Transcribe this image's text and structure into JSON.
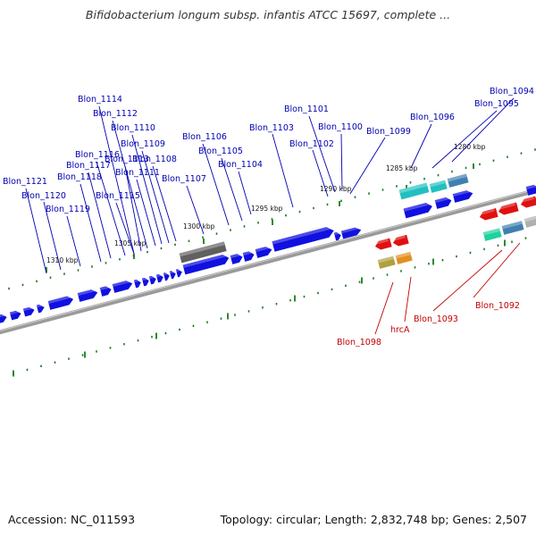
{
  "title": "Bifidobacterium longum subsp. infantis ATCC 15697, complete ...",
  "accession": "Accession: NC_011593",
  "summary": "Topology: circular; Length: 2,832,748 bp; Genes: 2,507",
  "colors": {
    "forward_gene": "#1010e0",
    "reverse_gene": "#e01010",
    "label_forward": "#0000b0",
    "label_reverse": "#c00000",
    "backbone": "#7a7a7a",
    "tick": "#1a7a1a"
  },
  "ticks": [
    {
      "label": "1280 kbp"
    },
    {
      "label": "1285 kbp"
    },
    {
      "label": "1290 kbp"
    },
    {
      "label": "1295 kbp"
    },
    {
      "label": "1300 kbp"
    },
    {
      "label": "1305 kbp"
    },
    {
      "label": "1310 kbp"
    }
  ],
  "forward_labels": [
    {
      "name": "Blon_1094"
    },
    {
      "name": "Blon_1095"
    },
    {
      "name": "Blon_1096"
    },
    {
      "name": "Blon_1099"
    },
    {
      "name": "Blon_1100"
    },
    {
      "name": "Blon_1101"
    },
    {
      "name": "Blon_1102"
    },
    {
      "name": "Blon_1103"
    },
    {
      "name": "Blon_1104"
    },
    {
      "name": "Blon_1105"
    },
    {
      "name": "Blon_1106"
    },
    {
      "name": "Blon_1107"
    },
    {
      "name": "Blon_1108"
    },
    {
      "name": "Blon_1109"
    },
    {
      "name": "Blon_1110"
    },
    {
      "name": "Blon_1111"
    },
    {
      "name": "Blon_1112"
    },
    {
      "name": "Blon_1113"
    },
    {
      "name": "Blon_1114"
    },
    {
      "name": "Blon_1115"
    },
    {
      "name": "Blon_1116"
    },
    {
      "name": "Blon_1117"
    },
    {
      "name": "Blon_1118"
    },
    {
      "name": "Blon_1119"
    },
    {
      "name": "Blon_1120"
    },
    {
      "name": "Blon_1121"
    }
  ],
  "reverse_labels": [
    {
      "name": "Blon_1092"
    },
    {
      "name": "Blon_1093"
    },
    {
      "name": "hrcA"
    },
    {
      "name": "Blon_1098"
    }
  ]
}
